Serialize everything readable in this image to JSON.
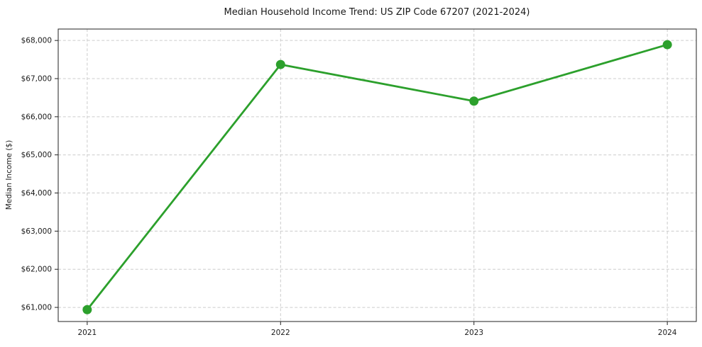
{
  "chart_data": {
    "type": "line",
    "title": "Median Household Income Trend: US ZIP Code 67207 (2021-2024)",
    "xlabel": "",
    "ylabel": "Median Income ($)",
    "categories": [
      "2021",
      "2022",
      "2023",
      "2024"
    ],
    "x": [
      2021,
      2022,
      2023,
      2024
    ],
    "series": [
      {
        "values": [
          60940,
          67370,
          66410,
          67890
        ],
        "color": "#2ca02c",
        "marker": "circle",
        "line_width": 2.8,
        "marker_radius": 6.5
      }
    ],
    "yticks": {
      "values": [
        61000,
        62000,
        63000,
        64000,
        65000,
        66000,
        67000,
        68000
      ],
      "labels": [
        "$61,000",
        "$62,000",
        "$63,000",
        "$64,000",
        "$65,000",
        "$66,000",
        "$67,000",
        "$68,000"
      ]
    },
    "xlim": [
      2020.85,
      2024.15
    ],
    "ylim": [
      60630,
      68300
    ],
    "grid": {
      "visible": true,
      "style": "dashed",
      "color": "#cccccc"
    },
    "legend": "none",
    "axis_color": "#222222",
    "background": "#ffffff"
  }
}
